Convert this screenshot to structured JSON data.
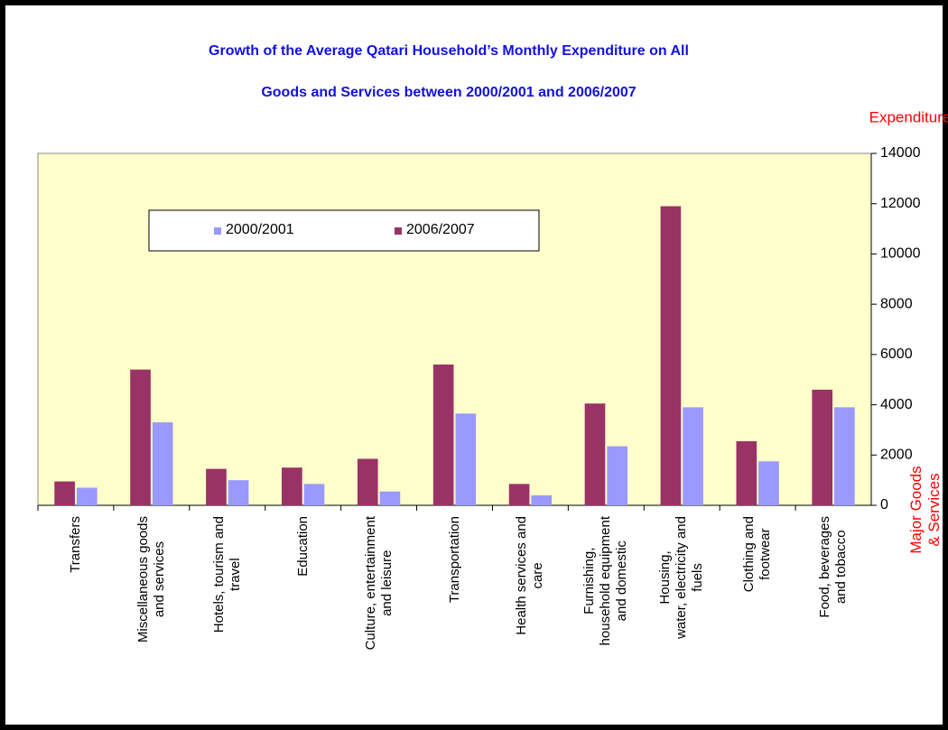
{
  "chart_data": {
    "type": "bar",
    "title": "Growth of the Average Qatari Household’s Monthly Expenditure  on All",
    "subtitle": "Goods and Services between  2000/2001 and 2006/2007",
    "y_axis_label": "Expenditure",
    "x_axis_label": "Major Goods\n& Services",
    "categories": [
      "Transfers",
      "Miscellaneous goods\nand services",
      "Hotels, tourism and\ntravel",
      "Education",
      "Culture, entertainment\nand leisure",
      "Transportation",
      "Health services and\ncare",
      "Furnishing,\nhousehold equipment\nand domestic",
      "Housing,\nwater, electricity and\nfuels",
      "Clothing and\nfootwear",
      "Food, beverages\nand tobacco"
    ],
    "series": [
      {
        "name": "2000/2001",
        "color": "#9999ff",
        "values": [
          700,
          3300,
          1000,
          850,
          550,
          3650,
          400,
          2350,
          3900,
          1750,
          3900
        ]
      },
      {
        "name": "2006/2007",
        "color": "#993366",
        "values": [
          950,
          5400,
          1450,
          1500,
          1850,
          5600,
          850,
          4050,
          11900,
          2550,
          4600
        ]
      }
    ],
    "ylim": [
      0,
      14000
    ],
    "yticks": [
      0,
      2000,
      4000,
      6000,
      8000,
      10000,
      12000,
      14000
    ],
    "legend": "upper left",
    "background": "#ffffcc"
  }
}
